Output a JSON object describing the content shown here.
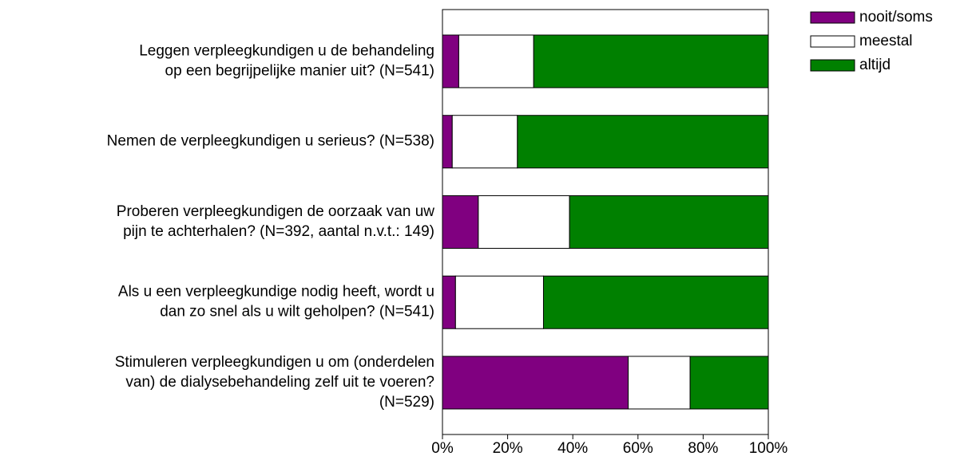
{
  "chart_data": {
    "type": "stacked-barh",
    "categories": [
      [
        "Leggen verpleegkundigen u de behandeling",
        "op een begrijpelijke manier uit? (N=541)"
      ],
      [
        "Nemen de verpleegkundigen u serieus? (N=538)"
      ],
      [
        "Proberen verpleegkundigen de oorzaak van uw",
        "pijn te achterhalen? (N=392, aantal n.v.t.: 149)"
      ],
      [
        "Als u een verpleegkundige nodig heeft, wordt u",
        "dan zo snel als u wilt geholpen? (N=541)"
      ],
      [
        "Stimuleren verpleegkundigen u om (onderdelen",
        "van) de dialysebehandeling zelf uit te voeren?",
        "(N=529)"
      ]
    ],
    "series": [
      {
        "name": "nooit/soms",
        "color": "#800080",
        "values": [
          5,
          3,
          11,
          4,
          57
        ]
      },
      {
        "name": "meestal",
        "color": "#ffffff",
        "values": [
          23,
          20,
          28,
          27,
          19
        ]
      },
      {
        "name": "altijd",
        "color": "#008000",
        "values": [
          72,
          77,
          61,
          69,
          24
        ]
      }
    ],
    "xlim": [
      0,
      100
    ],
    "xticks": [
      {
        "value": 0,
        "label": "0%"
      },
      {
        "value": 20,
        "label": "20%"
      },
      {
        "value": 40,
        "label": "40%"
      },
      {
        "value": 60,
        "label": "60%"
      },
      {
        "value": 80,
        "label": "80%"
      },
      {
        "value": 100,
        "label": "100%"
      }
    ],
    "legend": "top-right"
  }
}
